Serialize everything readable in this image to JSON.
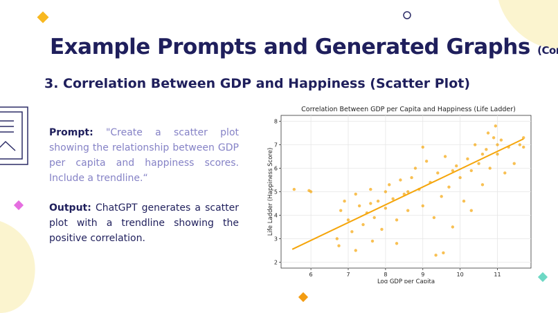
{
  "title": "Example Prompts and Generated Graphs",
  "title_suffix": "(Continued)",
  "heading": "3. Correlation Between GDP and Happiness (Scatter Plot)",
  "prompt": {
    "label": "Prompt:",
    "text": "\"Create a scatter plot showing the relationship between GDP per capita and happiness scores. Include a trendline.“"
  },
  "output": {
    "label": "Output:",
    "text": "ChatGPT generates a scatter plot with a trendline showing the positive correlation."
  },
  "chart_data": {
    "type": "scatter",
    "title": "Correlation Between GDP per Capita and Happiness (Life Ladder)",
    "x_label": "Log GDP per Capita",
    "y_label": "Life Ladder (Happiness Score)",
    "xlim": [
      5.2,
      11.9
    ],
    "ylim": [
      1.75,
      8.25
    ],
    "xticks": [
      6,
      7,
      8,
      9,
      10,
      11
    ],
    "yticks": [
      2,
      3,
      4,
      5,
      6,
      7,
      8
    ],
    "grid": true,
    "color": "#f5a50a",
    "x": [
      5.55,
      5.95,
      6.0,
      6.7,
      6.75,
      6.8,
      6.9,
      7.0,
      7.1,
      7.2,
      7.3,
      7.4,
      7.5,
      7.6,
      7.65,
      7.7,
      7.8,
      7.9,
      8.0,
      8.1,
      8.2,
      8.3,
      8.4,
      8.5,
      8.6,
      8.7,
      8.8,
      8.9,
      9.0,
      9.1,
      9.2,
      9.3,
      9.35,
      9.4,
      9.5,
      9.55,
      9.6,
      9.7,
      9.8,
      9.9,
      10.0,
      10.1,
      10.2,
      10.3,
      10.4,
      10.5,
      10.6,
      10.7,
      10.75,
      10.8,
      10.9,
      10.95,
      11.0,
      11.1,
      11.2,
      11.3,
      11.45,
      11.6,
      11.7,
      11.7,
      8.3,
      7.2,
      10.3,
      9.0,
      7.6,
      8.6,
      9.8,
      10.6,
      11.0,
      8.0
    ],
    "values": [
      5.1,
      5.05,
      5.0,
      3.0,
      2.7,
      4.2,
      4.6,
      3.8,
      3.3,
      4.9,
      4.4,
      3.6,
      4.1,
      5.1,
      2.9,
      3.9,
      4.6,
      3.4,
      4.3,
      5.3,
      4.7,
      3.8,
      5.5,
      4.9,
      4.2,
      5.6,
      6.0,
      5.1,
      4.4,
      6.3,
      5.4,
      3.9,
      2.3,
      5.8,
      4.8,
      2.4,
      6.5,
      5.2,
      3.5,
      6.1,
      5.6,
      4.6,
      6.4,
      5.9,
      7.0,
      6.2,
      5.3,
      6.8,
      7.5,
      6.0,
      7.3,
      7.8,
      6.6,
      7.2,
      5.8,
      6.9,
      6.2,
      7.0,
      7.3,
      6.9,
      2.8,
      2.5,
      4.2,
      6.9,
      4.5,
      5.0,
      5.9,
      6.6,
      7.0,
      5.0
    ],
    "trendline": {
      "x": [
        5.5,
        11.7
      ],
      "values": [
        2.55,
        7.25
      ]
    }
  }
}
